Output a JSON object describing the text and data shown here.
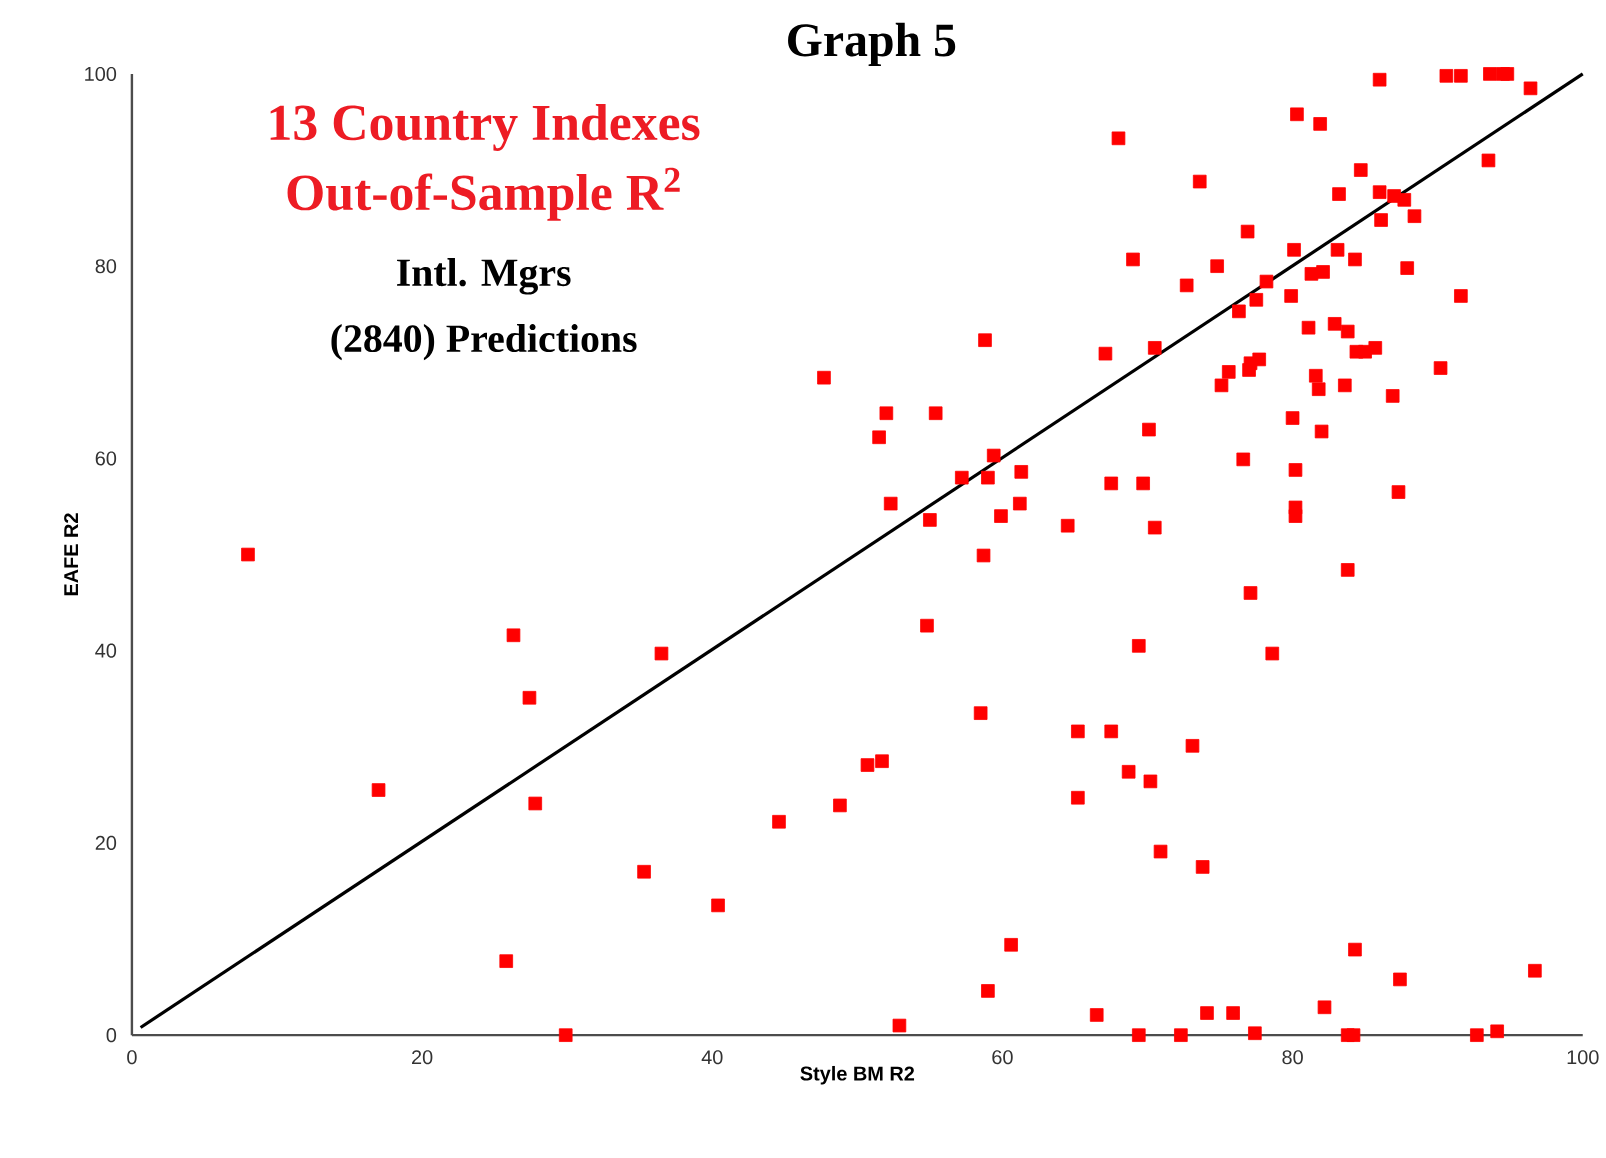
{
  "chart_data": {
    "type": "scatter",
    "title": "Graph 5",
    "xlabel": "Style BM R2",
    "ylabel": "EAFE R2",
    "annotations": [
      "13 Country Indexes",
      "Out-of-Sample R$^{2}$",
      "Intl. Mgrs",
      "(2840) Predictions"
    ],
    "xlim": [
      0,
      100
    ],
    "ylim": [
      0,
      100
    ],
    "xticks": [
      0,
      20,
      40,
      60,
      80,
      100
    ],
    "yticks": [
      0,
      20,
      40,
      60,
      80,
      100
    ],
    "grid": false,
    "marker": "square",
    "series": [
      {
        "color": "#ff0000",
        "x": [
          8,
          17,
          26.3,
          27.4,
          27.8,
          25.8,
          29.9,
          35.3,
          36.5,
          40.4,
          44.6,
          47.7,
          48.8,
          50.7,
          51.7,
          51.5,
          52,
          52.3,
          52.9,
          54.8,
          55,
          55.4,
          57.2,
          58.8,
          58.5,
          58.7,
          59,
          59.4,
          59,
          59.9,
          60.6,
          61.2,
          61.3,
          64.5,
          65.2,
          65.2,
          66.5,
          67.1,
          67.5,
          67.5,
          68,
          68.7,
          69,
          69.4,
          69.7,
          70.1,
          70.2,
          70.5,
          70.5,
          69.4,
          70.9,
          72.3,
          72.7,
          73.1,
          73.6,
          73.8,
          74.1,
          74.8,
          75.1,
          75.6,
          75.9,
          76.3,
          76.6,
          76.9,
          77,
          77.1,
          77.1,
          77.4,
          77.7,
          77.5,
          78.2,
          78.6,
          79.9,
          80,
          80.1,
          80.2,
          80.2,
          80.2,
          80.3,
          81.3,
          81.1,
          81.6,
          81.8,
          81.9,
          82,
          82.1,
          82.2,
          82.9,
          83.1,
          83.2,
          83.8,
          83.8,
          83.6,
          83.8,
          84.2,
          84.4,
          84.3,
          84.3,
          84.7,
          85,
          85.7,
          86,
          86,
          86.1,
          86.9,
          87,
          87.3,
          87.4,
          87.7,
          87.9,
          88.4,
          90.2,
          90.6,
          91.6,
          91.6,
          92.7,
          93.5,
          93.6,
          94.5,
          94.1,
          94.8,
          96.4,
          96.7
        ],
        "values": [
          50,
          25.5,
          41.6,
          35.1,
          24.1,
          7.7,
          0,
          17,
          39.7,
          13.5,
          22.2,
          68.4,
          23.9,
          28.1,
          28.5,
          62.2,
          64.7,
          55.3,
          1,
          42.6,
          53.6,
          64.7,
          58,
          72.3,
          33.5,
          49.9,
          58,
          60.3,
          4.6,
          54,
          9.4,
          55.3,
          58.6,
          53,
          31.6,
          24.7,
          2.1,
          70.9,
          57.4,
          31.6,
          93.3,
          27.4,
          80.7,
          40.5,
          57.4,
          63,
          26.4,
          52.8,
          71.5,
          0,
          19.1,
          0,
          78,
          30.1,
          88.8,
          17.5,
          2.3,
          80,
          67.6,
          69,
          2.3,
          75.3,
          59.9,
          83.6,
          69.2,
          69.9,
          46,
          0.2,
          70.3,
          76.5,
          78.4,
          39.7,
          76.9,
          64.2,
          81.7,
          58.8,
          54.9,
          54,
          95.8,
          79.2,
          73.6,
          68.6,
          67.2,
          94.8,
          62.8,
          79.4,
          2.9,
          74,
          81.7,
          87.5,
          73.2,
          48.4,
          67.6,
          0,
          0,
          71.1,
          80.7,
          8.9,
          90,
          71.1,
          71.5,
          87.7,
          99.4,
          84.8,
          66.5,
          87.3,
          56.5,
          5.8,
          86.9,
          79.8,
          85.2,
          69.4,
          99.8,
          99.8,
          76.9,
          0,
          91,
          100,
          100,
          0.4,
          100,
          98.5,
          6.7
        ]
      },
      {
        "type": "line",
        "color": "#000000",
        "marker": "none",
        "line_style": "solid",
        "x": [
          0.6,
          100
        ],
        "values": [
          0.8,
          100
        ]
      }
    ]
  }
}
